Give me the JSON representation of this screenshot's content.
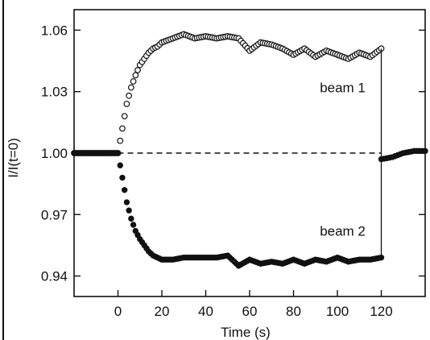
{
  "chart_data": {
    "type": "scatter",
    "xlabel": "Time (s)",
    "ylabel": "I/I(t=0)",
    "xlim": [
      -20,
      140
    ],
    "ylim": [
      0.93,
      1.07
    ],
    "xticks": [
      0,
      20,
      40,
      60,
      80,
      100,
      120
    ],
    "yticks": [
      0.94,
      0.97,
      1.0,
      1.03,
      1.06
    ],
    "ytick_labels": [
      "0.94",
      "0.97",
      "1.00",
      "1.03",
      "1.06"
    ],
    "xtick_labels": [
      "0",
      "20",
      "40",
      "60",
      "80",
      "100",
      "120"
    ],
    "reference_line": {
      "y": 1.0,
      "style": "dashed"
    },
    "annotations": [
      {
        "text": "beam 1",
        "x": 92,
        "y": 1.032
      },
      {
        "text": "beam 2",
        "x": 92,
        "y": 0.962
      }
    ],
    "series": [
      {
        "name": "beam 1",
        "marker": "open-circle",
        "points": [
          [
            -20,
            1.0
          ],
          [
            -15,
            1.0
          ],
          [
            -10,
            1.0
          ],
          [
            -5,
            1.0
          ],
          [
            0,
            1.0
          ],
          [
            2,
            1.012
          ],
          [
            4,
            1.024
          ],
          [
            6,
            1.032
          ],
          [
            8,
            1.038
          ],
          [
            10,
            1.043
          ],
          [
            12,
            1.046
          ],
          [
            14,
            1.049
          ],
          [
            16,
            1.051
          ],
          [
            18,
            1.052
          ],
          [
            20,
            1.054
          ],
          [
            25,
            1.056
          ],
          [
            30,
            1.058
          ],
          [
            35,
            1.056
          ],
          [
            40,
            1.057
          ],
          [
            45,
            1.056
          ],
          [
            50,
            1.057
          ],
          [
            55,
            1.056
          ],
          [
            60,
            1.05
          ],
          [
            65,
            1.054
          ],
          [
            70,
            1.053
          ],
          [
            75,
            1.051
          ],
          [
            80,
            1.048
          ],
          [
            85,
            1.051
          ],
          [
            90,
            1.047
          ],
          [
            95,
            1.05
          ],
          [
            100,
            1.048
          ],
          [
            105,
            1.046
          ],
          [
            110,
            1.049
          ],
          [
            115,
            1.047
          ],
          [
            120,
            1.051
          ]
        ],
        "after": [
          [
            120,
            0.997
          ],
          [
            125,
            0.998
          ],
          [
            130,
            1.0
          ],
          [
            135,
            1.001
          ],
          [
            140,
            1.001
          ]
        ]
      },
      {
        "name": "beam 2",
        "marker": "filled-circle",
        "points": [
          [
            -20,
            1.0
          ],
          [
            -15,
            1.0
          ],
          [
            -10,
            1.0
          ],
          [
            -5,
            1.0
          ],
          [
            0,
            1.0
          ],
          [
            2,
            0.988
          ],
          [
            4,
            0.976
          ],
          [
            6,
            0.968
          ],
          [
            8,
            0.962
          ],
          [
            10,
            0.958
          ],
          [
            12,
            0.955
          ],
          [
            14,
            0.952
          ],
          [
            16,
            0.95
          ],
          [
            18,
            0.949
          ],
          [
            20,
            0.948
          ],
          [
            25,
            0.948
          ],
          [
            30,
            0.949
          ],
          [
            35,
            0.949
          ],
          [
            40,
            0.949
          ],
          [
            45,
            0.949
          ],
          [
            50,
            0.95
          ],
          [
            55,
            0.945
          ],
          [
            60,
            0.948
          ],
          [
            65,
            0.946
          ],
          [
            70,
            0.947
          ],
          [
            75,
            0.946
          ],
          [
            80,
            0.948
          ],
          [
            85,
            0.946
          ],
          [
            90,
            0.948
          ],
          [
            95,
            0.947
          ],
          [
            100,
            0.949
          ],
          [
            105,
            0.947
          ],
          [
            110,
            0.948
          ],
          [
            115,
            0.948
          ],
          [
            120,
            0.949
          ]
        ],
        "after": [
          [
            120,
            0.997
          ],
          [
            125,
            0.998
          ],
          [
            130,
            1.0
          ],
          [
            135,
            1.001
          ],
          [
            140,
            1.001
          ]
        ]
      }
    ]
  }
}
